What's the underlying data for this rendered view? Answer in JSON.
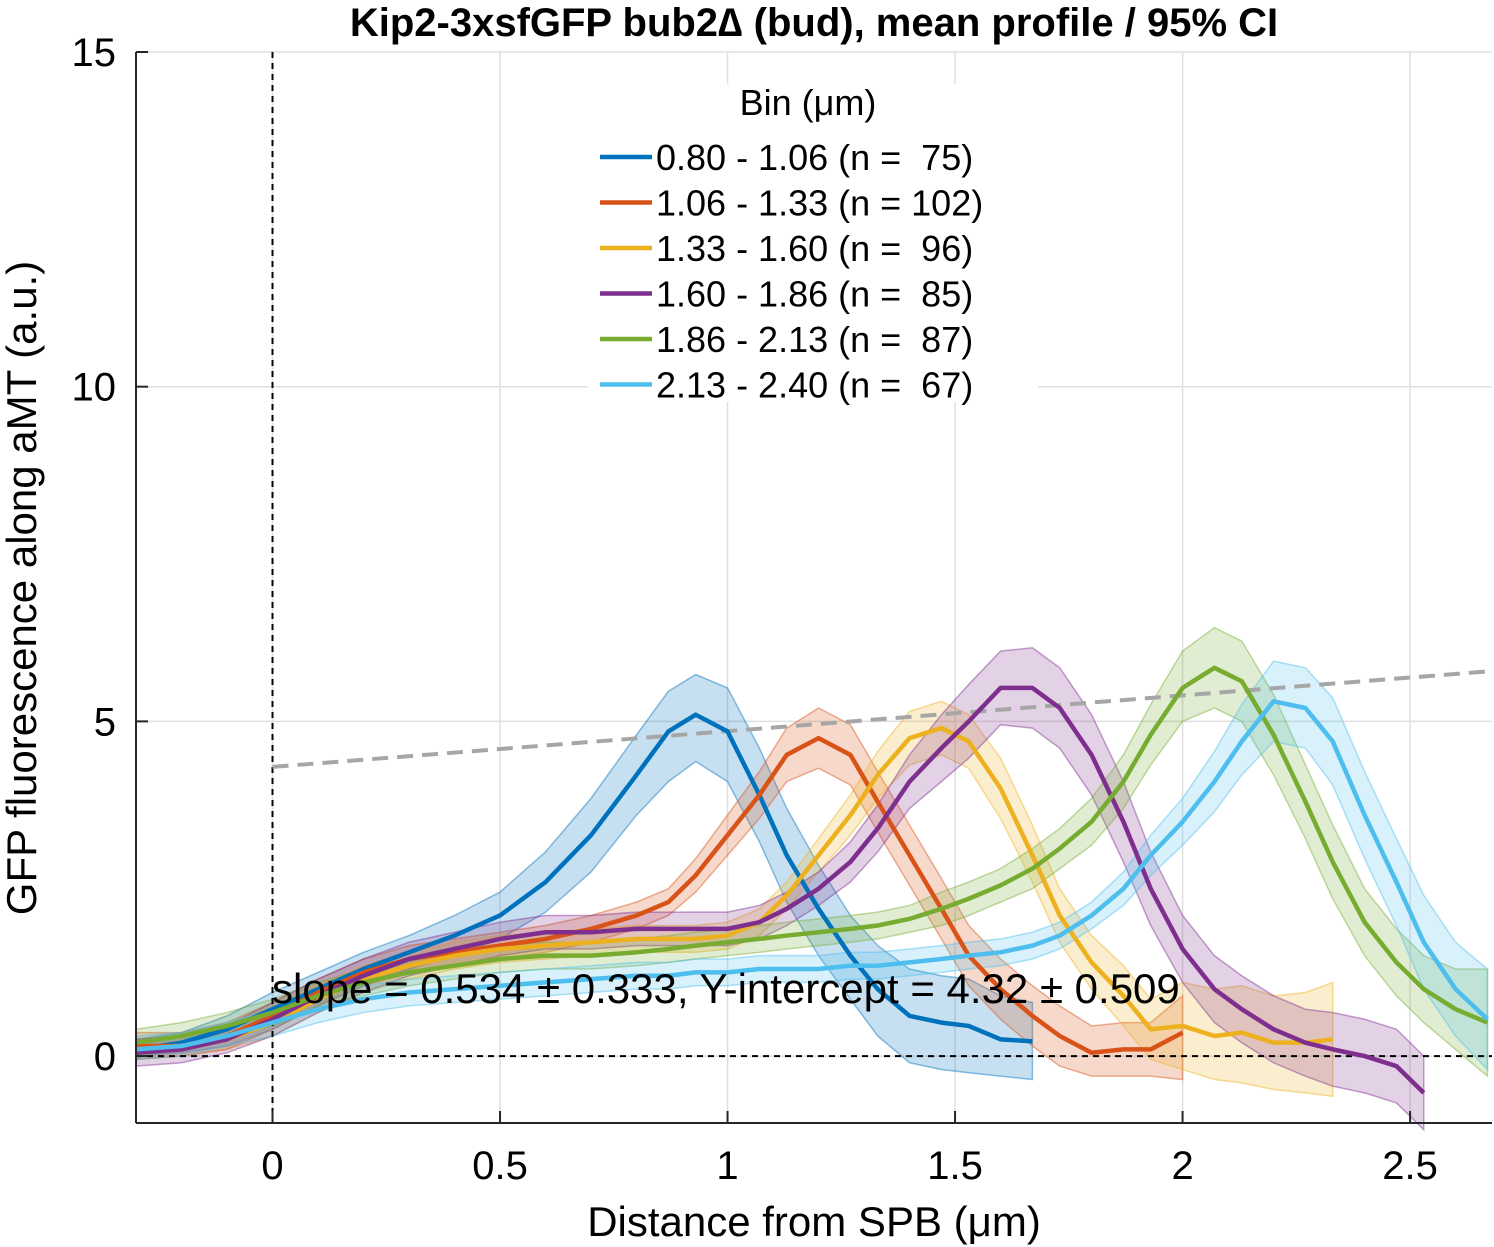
{
  "chart_data": {
    "type": "line",
    "title": "Kip2-3xsfGFP bub2∆ (bud), mean profile / 95% CI",
    "xlabel": "Distance from SPB (μm)",
    "ylabel": "GFP fluorescence along aMT (a.u.)",
    "xlim": [
      -0.3,
      2.68
    ],
    "ylim": [
      -1,
      15
    ],
    "xticks": [
      0,
      0.5,
      1,
      1.5,
      2,
      2.5
    ],
    "xtick_labels": [
      "0",
      "0.5",
      "1",
      "1.5",
      "2",
      "2.5"
    ],
    "yticks": [
      0,
      5,
      10,
      15
    ],
    "ytick_labels": [
      "0",
      "5",
      "10",
      "15"
    ],
    "grid": true,
    "legend": {
      "title": "Bin (μm)",
      "placement": "top-center"
    },
    "reference_lines": [
      {
        "type": "vertical",
        "x": 0,
        "style": "dashed",
        "color": "#000000"
      },
      {
        "type": "horizontal",
        "y": 0,
        "style": "dashed",
        "color": "#000000"
      }
    ],
    "fit_line": {
      "slope": 0.534,
      "intercept": 4.32,
      "x_range": [
        0,
        2.68
      ],
      "style": "dashed",
      "color": "#a6a6a6"
    },
    "annotation": "slope = 0.534 ± 0.333, Y-intercept = 4.32 ± 0.509",
    "series": [
      {
        "name": "0.80 - 1.06 (n =  75)",
        "color": "#0072BD",
        "x": [
          -0.3,
          -0.2,
          -0.1,
          0,
          0.1,
          0.2,
          0.3,
          0.4,
          0.5,
          0.6,
          0.7,
          0.8,
          0.87,
          0.93,
          1.0,
          1.07,
          1.13,
          1.2,
          1.27,
          1.33,
          1.4,
          1.47,
          1.53,
          1.6,
          1.67
        ],
        "y": [
          0.1,
          0.2,
          0.4,
          0.7,
          1.0,
          1.3,
          1.55,
          1.8,
          2.1,
          2.6,
          3.3,
          4.2,
          4.85,
          5.1,
          4.85,
          3.9,
          3.0,
          2.2,
          1.5,
          1.0,
          0.6,
          0.5,
          0.45,
          0.25,
          0.22
        ],
        "ci_low": [
          0.0,
          0.05,
          0.15,
          0.4,
          0.75,
          1.05,
          1.3,
          1.5,
          1.75,
          2.15,
          2.75,
          3.6,
          4.1,
          4.4,
          4.1,
          3.2,
          2.3,
          1.5,
          0.85,
          0.3,
          -0.1,
          -0.2,
          -0.25,
          -0.3,
          -0.35
        ],
        "ci_high": [
          0.25,
          0.35,
          0.6,
          0.95,
          1.25,
          1.55,
          1.8,
          2.1,
          2.45,
          3.05,
          3.85,
          4.8,
          5.45,
          5.7,
          5.5,
          4.6,
          3.7,
          2.85,
          2.1,
          1.65,
          1.3,
          1.2,
          1.15,
          0.9,
          0.8
        ]
      },
      {
        "name": "1.06 - 1.33 (n = 102)",
        "color": "#D95319",
        "x": [
          -0.3,
          -0.2,
          -0.1,
          0,
          0.1,
          0.2,
          0.3,
          0.4,
          0.5,
          0.6,
          0.7,
          0.8,
          0.87,
          0.93,
          1.0,
          1.07,
          1.13,
          1.2,
          1.27,
          1.33,
          1.4,
          1.47,
          1.53,
          1.6,
          1.67,
          1.73,
          1.8,
          1.87,
          1.93,
          2.0
        ],
        "y": [
          0.15,
          0.15,
          0.3,
          0.6,
          0.95,
          1.25,
          1.45,
          1.55,
          1.65,
          1.75,
          1.9,
          2.1,
          2.3,
          2.7,
          3.3,
          3.9,
          4.5,
          4.75,
          4.5,
          3.8,
          3.0,
          2.2,
          1.5,
          1.0,
          0.6,
          0.3,
          0.05,
          0.1,
          0.1,
          0.35
        ],
        "ci_low": [
          -0.05,
          0.0,
          0.1,
          0.4,
          0.75,
          1.05,
          1.25,
          1.35,
          1.45,
          1.55,
          1.7,
          1.9,
          2.1,
          2.45,
          3.0,
          3.55,
          4.1,
          4.3,
          4.05,
          3.35,
          2.55,
          1.75,
          1.05,
          0.55,
          0.15,
          -0.15,
          -0.3,
          -0.3,
          -0.3,
          -0.35
        ],
        "ci_high": [
          0.35,
          0.35,
          0.5,
          0.8,
          1.15,
          1.45,
          1.65,
          1.75,
          1.85,
          1.95,
          2.1,
          2.3,
          2.5,
          2.95,
          3.6,
          4.25,
          4.9,
          5.2,
          4.95,
          4.25,
          3.45,
          2.65,
          1.95,
          1.45,
          1.05,
          0.75,
          0.45,
          0.5,
          0.5,
          0.9
        ]
      },
      {
        "name": "1.33 - 1.60 (n =  96)",
        "color": "#EDB120",
        "x": [
          -0.3,
          -0.2,
          -0.1,
          0,
          0.1,
          0.2,
          0.3,
          0.4,
          0.5,
          0.6,
          0.7,
          0.8,
          0.87,
          0.93,
          1.0,
          1.07,
          1.13,
          1.2,
          1.27,
          1.33,
          1.4,
          1.47,
          1.53,
          1.6,
          1.67,
          1.73,
          1.8,
          1.87,
          1.93,
          2.0,
          2.07,
          2.13,
          2.2,
          2.27,
          2.33
        ],
        "y": [
          0.1,
          0.15,
          0.25,
          0.5,
          0.85,
          1.15,
          1.35,
          1.5,
          1.6,
          1.65,
          1.7,
          1.75,
          1.75,
          1.75,
          1.8,
          2.0,
          2.4,
          3.0,
          3.6,
          4.2,
          4.75,
          4.9,
          4.7,
          4.0,
          3.0,
          2.1,
          1.4,
          0.9,
          0.4,
          0.45,
          0.3,
          0.35,
          0.2,
          0.2,
          0.25
        ],
        "ci_low": [
          -0.05,
          0.0,
          0.1,
          0.3,
          0.65,
          0.95,
          1.15,
          1.3,
          1.4,
          1.45,
          1.5,
          1.55,
          1.55,
          1.55,
          1.6,
          1.8,
          2.2,
          2.75,
          3.3,
          3.85,
          4.35,
          4.5,
          4.3,
          3.55,
          2.6,
          1.7,
          1.0,
          0.45,
          -0.05,
          -0.2,
          -0.35,
          -0.4,
          -0.5,
          -0.55,
          -0.6
        ],
        "ci_high": [
          0.25,
          0.3,
          0.4,
          0.7,
          1.05,
          1.35,
          1.55,
          1.7,
          1.8,
          1.85,
          1.9,
          1.95,
          1.95,
          1.95,
          2.0,
          2.2,
          2.6,
          3.25,
          3.9,
          4.55,
          5.15,
          5.3,
          5.1,
          4.45,
          3.45,
          2.5,
          1.8,
          1.35,
          0.85,
          1.1,
          1.0,
          1.05,
          0.9,
          0.95,
          1.1
        ]
      },
      {
        "name": "1.60 - 1.86 (n =  85)",
        "color": "#7E2F8E",
        "x": [
          -0.3,
          -0.2,
          -0.1,
          0,
          0.1,
          0.2,
          0.3,
          0.4,
          0.5,
          0.6,
          0.7,
          0.8,
          0.87,
          0.93,
          1.0,
          1.07,
          1.13,
          1.2,
          1.27,
          1.33,
          1.4,
          1.47,
          1.53,
          1.6,
          1.67,
          1.73,
          1.8,
          1.87,
          1.93,
          2.0,
          2.07,
          2.13,
          2.2,
          2.27,
          2.33,
          2.4,
          2.47,
          2.53
        ],
        "y": [
          0.05,
          0.1,
          0.25,
          0.55,
          0.9,
          1.2,
          1.45,
          1.6,
          1.75,
          1.85,
          1.85,
          1.9,
          1.9,
          1.9,
          1.9,
          2.0,
          2.2,
          2.5,
          2.9,
          3.4,
          4.1,
          4.6,
          5.0,
          5.5,
          5.5,
          5.2,
          4.5,
          3.5,
          2.5,
          1.6,
          1.0,
          0.7,
          0.4,
          0.2,
          0.1,
          0.0,
          -0.15,
          -0.55
        ],
        "ci_low": [
          -0.15,
          -0.1,
          0.05,
          0.3,
          0.65,
          0.95,
          1.2,
          1.35,
          1.5,
          1.6,
          1.6,
          1.65,
          1.65,
          1.65,
          1.65,
          1.75,
          1.95,
          2.25,
          2.6,
          3.05,
          3.7,
          4.1,
          4.45,
          4.95,
          4.9,
          4.6,
          3.9,
          2.9,
          1.95,
          1.1,
          0.5,
          0.2,
          -0.1,
          -0.3,
          -0.45,
          -0.55,
          -0.7,
          -1.1
        ],
        "ci_high": [
          0.25,
          0.3,
          0.45,
          0.8,
          1.15,
          1.45,
          1.7,
          1.85,
          2.0,
          2.1,
          2.1,
          2.15,
          2.15,
          2.15,
          2.15,
          2.25,
          2.45,
          2.75,
          3.2,
          3.75,
          4.5,
          5.1,
          5.55,
          6.05,
          6.1,
          5.8,
          5.1,
          4.1,
          3.05,
          2.1,
          1.5,
          1.2,
          0.9,
          0.7,
          0.65,
          0.55,
          0.4,
          0.0
        ]
      },
      {
        "name": "1.86 - 2.13 (n =  87)",
        "color": "#77AC30",
        "x": [
          -0.3,
          -0.2,
          -0.1,
          0,
          0.1,
          0.2,
          0.3,
          0.4,
          0.5,
          0.6,
          0.7,
          0.8,
          0.87,
          0.93,
          1.0,
          1.07,
          1.13,
          1.2,
          1.27,
          1.33,
          1.4,
          1.47,
          1.53,
          1.6,
          1.67,
          1.73,
          1.8,
          1.87,
          1.93,
          2.0,
          2.07,
          2.13,
          2.2,
          2.27,
          2.33,
          2.4,
          2.47,
          2.53,
          2.6,
          2.67
        ],
        "y": [
          0.2,
          0.3,
          0.45,
          0.65,
          0.9,
          1.1,
          1.25,
          1.35,
          1.45,
          1.5,
          1.5,
          1.55,
          1.6,
          1.65,
          1.7,
          1.75,
          1.8,
          1.85,
          1.9,
          1.95,
          2.05,
          2.2,
          2.35,
          2.55,
          2.8,
          3.1,
          3.5,
          4.1,
          4.8,
          5.5,
          5.8,
          5.6,
          4.8,
          3.8,
          2.9,
          2.0,
          1.4,
          1.0,
          0.7,
          0.5
        ],
        "ci_low": [
          0.0,
          0.1,
          0.25,
          0.45,
          0.7,
          0.9,
          1.05,
          1.15,
          1.25,
          1.3,
          1.3,
          1.35,
          1.4,
          1.45,
          1.5,
          1.55,
          1.6,
          1.65,
          1.7,
          1.75,
          1.85,
          1.95,
          2.1,
          2.3,
          2.5,
          2.8,
          3.15,
          3.7,
          4.35,
          5.0,
          5.2,
          5.0,
          4.2,
          3.25,
          2.35,
          1.5,
          0.9,
          0.5,
          0.1,
          -0.3
        ],
        "ci_high": [
          0.4,
          0.5,
          0.65,
          0.85,
          1.1,
          1.3,
          1.45,
          1.55,
          1.65,
          1.7,
          1.7,
          1.75,
          1.8,
          1.85,
          1.9,
          1.95,
          2.0,
          2.05,
          2.1,
          2.15,
          2.25,
          2.45,
          2.6,
          2.8,
          3.1,
          3.4,
          3.85,
          4.5,
          5.25,
          6.05,
          6.4,
          6.2,
          5.4,
          4.35,
          3.45,
          2.5,
          1.9,
          1.5,
          1.3,
          1.3
        ]
      },
      {
        "name": "2.13 - 2.40 (n =  67)",
        "color": "#4DBEEE",
        "x": [
          -0.3,
          -0.2,
          -0.1,
          0,
          0.1,
          0.2,
          0.3,
          0.4,
          0.5,
          0.6,
          0.7,
          0.8,
          0.87,
          0.93,
          1.0,
          1.07,
          1.13,
          1.2,
          1.27,
          1.33,
          1.4,
          1.47,
          1.53,
          1.6,
          1.67,
          1.73,
          1.8,
          1.87,
          1.93,
          2.0,
          2.07,
          2.13,
          2.2,
          2.27,
          2.33,
          2.4,
          2.47,
          2.53,
          2.6,
          2.67
        ],
        "y": [
          0.1,
          0.15,
          0.3,
          0.5,
          0.7,
          0.85,
          0.95,
          1.0,
          1.05,
          1.1,
          1.15,
          1.2,
          1.2,
          1.25,
          1.25,
          1.3,
          1.3,
          1.3,
          1.35,
          1.35,
          1.4,
          1.45,
          1.5,
          1.55,
          1.65,
          1.8,
          2.1,
          2.5,
          3.0,
          3.5,
          4.1,
          4.7,
          5.3,
          5.2,
          4.7,
          3.6,
          2.6,
          1.7,
          1.0,
          0.55
        ],
        "ci_low": [
          -0.05,
          0.0,
          0.15,
          0.3,
          0.5,
          0.65,
          0.75,
          0.8,
          0.85,
          0.9,
          0.95,
          1.0,
          1.0,
          1.05,
          1.05,
          1.1,
          1.1,
          1.1,
          1.15,
          1.15,
          1.2,
          1.25,
          1.3,
          1.35,
          1.45,
          1.6,
          1.9,
          2.25,
          2.7,
          3.15,
          3.65,
          4.2,
          4.7,
          4.6,
          4.05,
          2.95,
          1.95,
          1.0,
          0.3,
          -0.2
        ],
        "ci_high": [
          0.3,
          0.35,
          0.5,
          0.7,
          0.9,
          1.05,
          1.15,
          1.2,
          1.25,
          1.3,
          1.35,
          1.4,
          1.4,
          1.45,
          1.45,
          1.5,
          1.5,
          1.5,
          1.55,
          1.55,
          1.6,
          1.65,
          1.7,
          1.75,
          1.85,
          2.0,
          2.3,
          2.75,
          3.3,
          3.85,
          4.55,
          5.25,
          5.9,
          5.8,
          5.35,
          4.25,
          3.25,
          2.4,
          1.7,
          1.3
        ]
      }
    ]
  }
}
